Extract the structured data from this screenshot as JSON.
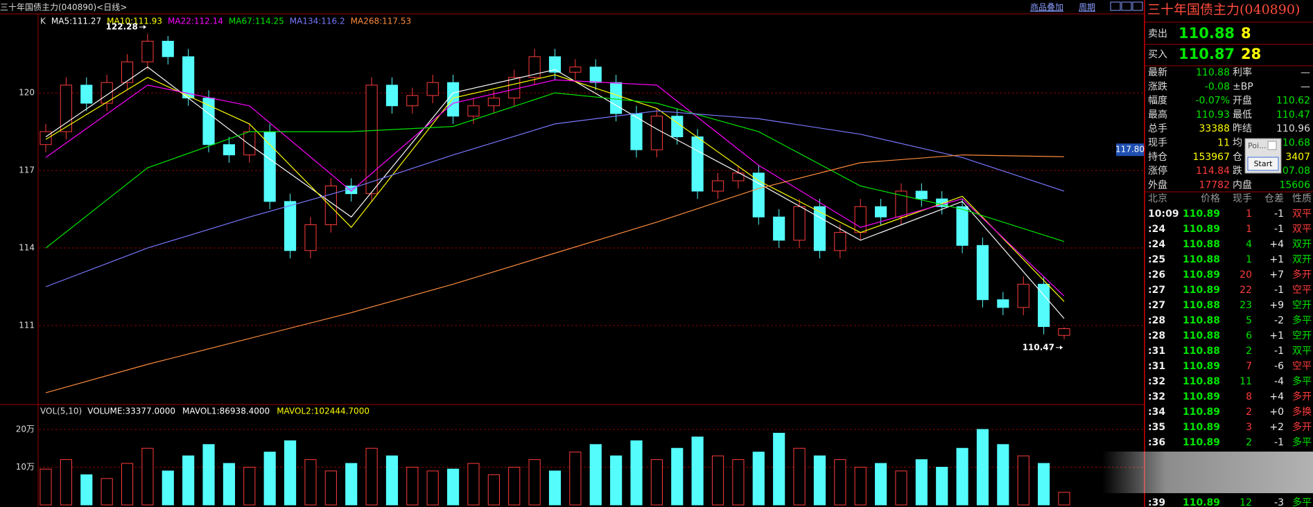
{
  "header": {
    "title": "三十年国债主力(040890)<日线>",
    "links": [
      "商品叠加",
      "周期"
    ]
  },
  "chart_data": [
    {
      "type": "candlestick",
      "indicator": "K",
      "open": [
        118.0,
        118.5,
        120.3,
        119.6,
        120.4,
        121.2,
        122.0,
        121.4,
        119.8,
        118.0,
        117.6,
        118.5,
        115.8,
        113.9,
        114.9,
        116.4,
        116.1,
        120.3,
        119.5,
        119.9,
        120.4,
        119.1,
        119.5,
        119.8,
        120.6,
        121.4,
        120.8,
        121.0,
        120.4,
        119.2,
        117.8,
        119.1,
        118.3,
        116.2,
        116.6,
        116.9,
        115.2,
        114.3,
        115.6,
        113.9,
        114.6,
        115.6,
        115.2,
        116.2,
        115.9,
        115.6,
        114.1,
        112.0,
        111.7,
        112.6,
        110.62
      ],
      "high": [
        118.8,
        120.6,
        120.6,
        120.7,
        121.5,
        122.28,
        122.2,
        121.7,
        120.1,
        118.3,
        118.8,
        118.8,
        116.1,
        115.2,
        116.7,
        116.7,
        120.6,
        120.6,
        120.2,
        120.7,
        120.7,
        119.8,
        120.1,
        120.9,
        121.7,
        121.7,
        121.3,
        121.3,
        120.7,
        119.5,
        119.4,
        119.4,
        118.6,
        116.9,
        117.2,
        117.2,
        115.5,
        115.9,
        115.9,
        114.9,
        115.9,
        115.9,
        116.5,
        116.5,
        116.2,
        115.9,
        114.4,
        112.3,
        112.9,
        112.9,
        110.93
      ],
      "low": [
        117.7,
        118.2,
        119.3,
        119.3,
        120.1,
        120.9,
        121.1,
        119.5,
        117.7,
        117.3,
        117.3,
        115.5,
        113.6,
        113.6,
        114.6,
        115.8,
        115.8,
        119.2,
        119.2,
        119.6,
        118.8,
        118.8,
        119.2,
        119.5,
        120.3,
        120.5,
        120.5,
        120.1,
        118.9,
        117.5,
        117.5,
        118.0,
        115.9,
        115.9,
        116.3,
        114.9,
        114.0,
        114.0,
        113.6,
        113.6,
        114.3,
        114.9,
        114.9,
        115.6,
        115.3,
        113.8,
        111.7,
        111.4,
        111.4,
        110.66,
        110.47
      ],
      "close": [
        118.5,
        120.3,
        119.6,
        120.4,
        121.2,
        122.0,
        121.4,
        119.8,
        118.0,
        117.6,
        118.5,
        115.8,
        113.9,
        114.9,
        116.4,
        116.1,
        120.3,
        119.5,
        119.9,
        120.4,
        119.1,
        119.5,
        119.8,
        120.6,
        121.4,
        120.8,
        121.0,
        120.4,
        119.2,
        117.8,
        119.1,
        118.3,
        116.2,
        116.6,
        116.9,
        115.2,
        114.3,
        115.6,
        113.9,
        114.6,
        115.6,
        115.2,
        116.2,
        115.9,
        115.6,
        114.1,
        112.0,
        111.7,
        112.6,
        110.96,
        110.88
      ],
      "up_color": "#ff3c3c",
      "down_color": "#54fcfc",
      "ylim": [
        108,
        122.95
      ],
      "yticks": [
        111,
        114,
        117,
        120
      ],
      "grid": true,
      "ma_x": [
        0,
        5,
        10,
        15,
        20,
        25,
        30,
        35,
        40,
        45,
        50
      ],
      "series": [
        {
          "name": "MA5:",
          "color": "#ffffff",
          "values": [
            118.3,
            121.0,
            118.0,
            115.2,
            120.0,
            120.9,
            118.6,
            116.5,
            114.3,
            115.8,
            111.27
          ]
        },
        {
          "name": "MA10:",
          "color": "#ffff00",
          "values": [
            118.2,
            120.6,
            118.8,
            114.8,
            119.8,
            120.7,
            119.4,
            116.6,
            114.6,
            116.0,
            111.93
          ]
        },
        {
          "name": "MA22:",
          "color": "#ff00ff",
          "values": [
            117.5,
            120.3,
            119.5,
            116.2,
            119.6,
            120.5,
            120.3,
            117.2,
            114.8,
            115.9,
            112.14
          ]
        },
        {
          "name": "MA67:",
          "color": "#00e600",
          "values": [
            114.0,
            117.1,
            118.5,
            118.5,
            118.7,
            120.0,
            119.6,
            118.5,
            116.4,
            115.5,
            114.25
          ]
        },
        {
          "name": "MA134:",
          "color": "#7878ff",
          "values": [
            112.5,
            114.0,
            115.2,
            116.3,
            117.6,
            118.8,
            119.3,
            119.0,
            118.4,
            117.5,
            116.2
          ]
        },
        {
          "name": "MA268:",
          "color": "#ff8c3c",
          "values": [
            108.4,
            109.5,
            110.5,
            111.5,
            112.6,
            113.8,
            115.0,
            116.3,
            117.3,
            117.6,
            117.53
          ]
        }
      ],
      "crosshair_value": {
        "value": 117.8,
        "label": "117.80"
      }
    },
    {
      "type": "bar",
      "header": "VOL(5,10)",
      "stats": [
        {
          "name": "VOLUME:",
          "value": 33377,
          "label": "33377.0000",
          "color": "#ffffff"
        },
        {
          "name": "MAVOL1:",
          "value": 86938.4,
          "label": "86938.4000",
          "color": "#ffffff"
        },
        {
          "name": "MAVOL2:",
          "value": 102444.7,
          "label": "102444.7000",
          "color": "#ffff00"
        }
      ],
      "values": [
        95000,
        120000,
        80000,
        70000,
        110000,
        150000,
        90000,
        130000,
        160000,
        110000,
        100000,
        140000,
        170000,
        120000,
        90000,
        110000,
        150000,
        130000,
        100000,
        90000,
        95000,
        110000,
        80000,
        100000,
        120000,
        90000,
        140000,
        160000,
        130000,
        170000,
        120000,
        150000,
        180000,
        130000,
        120000,
        140000,
        190000,
        150000,
        130000,
        120000,
        100000,
        110000,
        90000,
        120000,
        100000,
        150000,
        200000,
        160000,
        130000,
        110000,
        33377
      ],
      "ylim": [
        0,
        255000
      ],
      "yticks": [
        {
          "value": 100000,
          "label": "10万"
        },
        {
          "value": 200000,
          "label": "20万"
        }
      ],
      "grid": true
    }
  ],
  "quote": {
    "title": "三十年国债主力(040890)",
    "ask": {
      "label": "卖出",
      "price": 110.88,
      "volume": 8
    },
    "bid": {
      "label": "买入",
      "price": 110.87,
      "volume": 28
    },
    "stats": [
      {
        "label": "最新",
        "value": "110.88",
        "color": "#00e600"
      },
      {
        "label": "利率",
        "value": "—",
        "color": "#dddddd"
      },
      {
        "label": "涨跌",
        "value": "-0.08",
        "color": "#00e600"
      },
      {
        "label": "±BP",
        "value": "—",
        "color": "#dddddd"
      },
      {
        "label": "幅度",
        "value": "-0.07%",
        "color": "#00e600"
      },
      {
        "label": "开盘",
        "value": "110.62",
        "color": "#00e600"
      },
      {
        "label": "最高",
        "value": "110.93",
        "color": "#00e600"
      },
      {
        "label": "最低",
        "value": "110.47",
        "color": "#00e600"
      },
      {
        "label": "总手",
        "value": "33388",
        "color": "#ffff00"
      },
      {
        "label": "昨结",
        "value": "110.96",
        "color": "#dddddd"
      },
      {
        "label": "现手",
        "value": "11",
        "color": "#ffff00"
      },
      {
        "label": "均",
        "value": "10.68",
        "color": "#00e600"
      },
      {
        "label": "持仓",
        "value": "153967",
        "color": "#ffff00"
      },
      {
        "label": "仓",
        "value": "3407",
        "color": "#ffff00"
      },
      {
        "label": "涨停",
        "value": "114.84",
        "color": "#ff3c3c"
      },
      {
        "label": "跌",
        "value": "07.08",
        "color": "#00e600"
      },
      {
        "label": "外盘",
        "value": "17782",
        "color": "#ff3c3c"
      },
      {
        "label": "内盘",
        "value": "15606",
        "color": "#00e600"
      }
    ],
    "trade_header": [
      "北京",
      "价格",
      "现手",
      "仓差",
      "性质"
    ],
    "trades": [
      {
        "time": "10:09",
        "price": "110.89",
        "volume": "1",
        "change": "-1",
        "nature": "双平",
        "color": "#ff3c3c"
      },
      {
        "time": ":24",
        "price": "110.89",
        "volume": "1",
        "change": "-1",
        "nature": "双平",
        "color": "#ff3c3c"
      },
      {
        "time": ":24",
        "price": "110.88",
        "volume": "4",
        "change": "+4",
        "nature": "双开",
        "color": "#00e600"
      },
      {
        "time": ":25",
        "price": "110.88",
        "volume": "1",
        "change": "+1",
        "nature": "双开",
        "color": "#00e600"
      },
      {
        "time": ":26",
        "price": "110.89",
        "volume": "20",
        "change": "+7",
        "nature": "多开",
        "color": "#ff3c3c"
      },
      {
        "time": ":27",
        "price": "110.89",
        "volume": "22",
        "change": "-1",
        "nature": "空平",
        "color": "#ff3c3c"
      },
      {
        "time": ":27",
        "price": "110.88",
        "volume": "23",
        "change": "+9",
        "nature": "空开",
        "color": "#00e600"
      },
      {
        "time": ":28",
        "price": "110.88",
        "volume": "5",
        "change": "-2",
        "nature": "多平",
        "color": "#00e600"
      },
      {
        "time": ":28",
        "price": "110.88",
        "volume": "6",
        "change": "+1",
        "nature": "空开",
        "color": "#00e600"
      },
      {
        "time": ":31",
        "price": "110.88",
        "volume": "2",
        "change": "-1",
        "nature": "双平",
        "color": "#00e600"
      },
      {
        "time": ":31",
        "price": "110.89",
        "volume": "7",
        "change": "-6",
        "nature": "空平",
        "color": "#ff3c3c"
      },
      {
        "time": ":32",
        "price": "110.88",
        "volume": "11",
        "change": "-4",
        "nature": "多平",
        "color": "#00e600"
      },
      {
        "time": ":32",
        "price": "110.89",
        "volume": "8",
        "change": "+4",
        "nature": "多开",
        "color": "#ff3c3c"
      },
      {
        "time": ":34",
        "price": "110.89",
        "volume": "2",
        "change": "+0",
        "nature": "多换",
        "color": "#ff3c3c"
      },
      {
        "time": ":35",
        "price": "110.89",
        "volume": "3",
        "change": "+2",
        "nature": "多开",
        "color": "#ff3c3c"
      },
      {
        "time": ":36",
        "price": "110.89",
        "volume": "2",
        "change": "-1",
        "nature": "多平",
        "color": "#00e600"
      }
    ],
    "last_trade": {
      "time": ":39",
      "price": "110.89",
      "volume": "12",
      "change": "-3",
      "nature": "多平",
      "color": "#00e600"
    }
  },
  "popup": {
    "title": "Poi...",
    "button": "Start"
  }
}
